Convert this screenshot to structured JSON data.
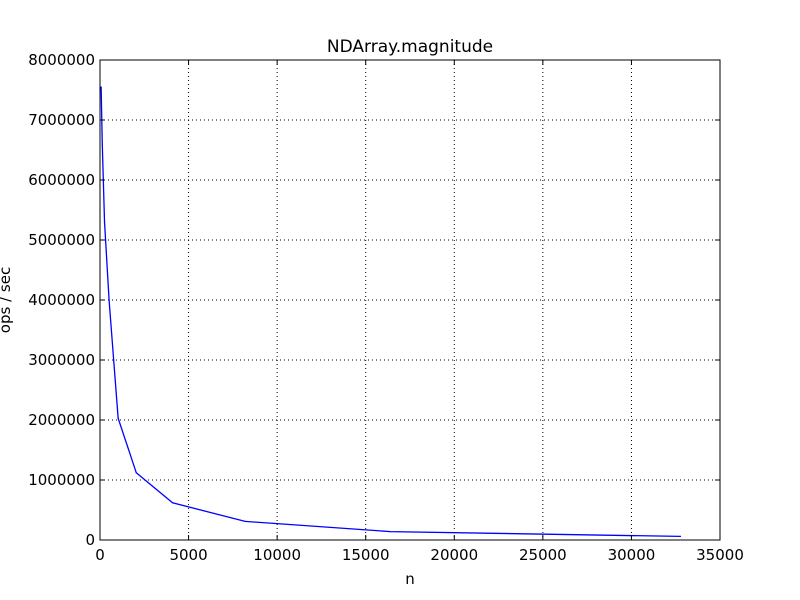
{
  "chart_data": {
    "type": "line",
    "title": "NDArray.magnitude",
    "xlabel": "n",
    "ylabel": "ops / sec",
    "xlim": [
      0,
      35000
    ],
    "ylim": [
      0,
      8000000
    ],
    "xticks": [
      0,
      5000,
      10000,
      15000,
      20000,
      25000,
      30000,
      35000
    ],
    "yticks": [
      0,
      1000000,
      2000000,
      3000000,
      4000000,
      5000000,
      6000000,
      7000000,
      8000000
    ],
    "xtick_labels": [
      "0",
      "5000",
      "10000",
      "15000",
      "20000",
      "25000",
      "30000",
      "35000"
    ],
    "ytick_labels": [
      "0",
      "1000000",
      "2000000",
      "3000000",
      "4000000",
      "5000000",
      "6000000",
      "7000000",
      "8000000"
    ],
    "grid": true,
    "legend": "none",
    "series": [
      {
        "color": "#0000ff",
        "x": [
          64,
          128,
          256,
          512,
          1024,
          2048,
          4096,
          8192,
          16384,
          32768
        ],
        "y": [
          7550000,
          6600000,
          5300000,
          4000000,
          2030000,
          1120000,
          620000,
          310000,
          140000,
          60000
        ]
      }
    ]
  }
}
